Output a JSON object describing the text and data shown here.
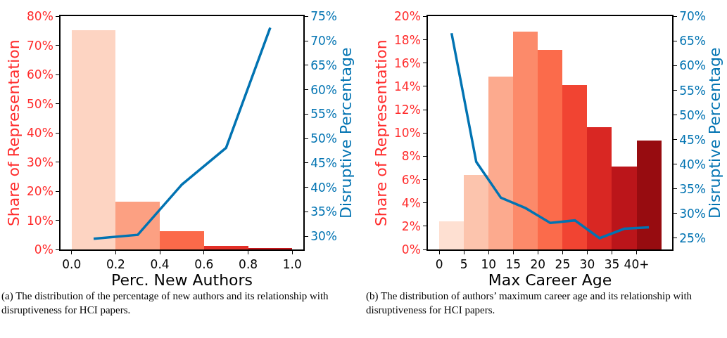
{
  "chart_data": [
    {
      "type": "histogram",
      "xlabel": "Perc. New Authors",
      "ylabel": "Share of Representation",
      "y2label": "Disruptive Percentage",
      "bins": [
        0.0,
        0.2,
        0.4,
        0.6,
        0.8,
        1.0
      ],
      "values": [
        75.1,
        16.4,
        6.3,
        1.1,
        0.5
      ],
      "colors": [
        "#fdd4c2",
        "#fca082",
        "#fb6a4a",
        "#e32f27",
        "#c3161b"
      ],
      "series": [
        {
          "type": "line",
          "axis": "y2",
          "color": "#0173b2",
          "x": [
            0.1,
            0.3,
            0.5,
            0.7,
            0.9
          ],
          "values": [
            29.5,
            30.3,
            40.6,
            48.1,
            72.7
          ]
        }
      ],
      "xlim": [
        -0.05,
        1.05
      ],
      "xticks": [
        {
          "value": 0,
          "label": "0.0"
        },
        {
          "value": 0.2,
          "label": "0.2"
        },
        {
          "value": 0.4,
          "label": "0.4"
        },
        {
          "value": 0.6,
          "label": "0.6"
        },
        {
          "value": 0.8,
          "label": "0.8"
        },
        {
          "value": 1,
          "label": "1.0"
        }
      ],
      "ylim": [
        0,
        80
      ],
      "yticks": [
        {
          "value": 0,
          "label": "0%"
        },
        {
          "value": 10,
          "label": "10%"
        },
        {
          "value": 20,
          "label": "20%"
        },
        {
          "value": 30,
          "label": "30%"
        },
        {
          "value": 40,
          "label": "40%"
        },
        {
          "value": 50,
          "label": "50%"
        },
        {
          "value": 60,
          "label": "60%"
        },
        {
          "value": 70,
          "label": "70%"
        },
        {
          "value": 80,
          "label": "80%"
        }
      ],
      "y2lim": [
        27.3,
        75
      ],
      "y2ticks": [
        {
          "value": 30,
          "label": "30%"
        },
        {
          "value": 35,
          "label": "35%"
        },
        {
          "value": 40,
          "label": "40%"
        },
        {
          "value": 45,
          "label": "45%"
        },
        {
          "value": 50,
          "label": "50%"
        },
        {
          "value": 55,
          "label": "55%"
        },
        {
          "value": 60,
          "label": "60%"
        },
        {
          "value": 65,
          "label": "65%"
        },
        {
          "value": 70,
          "label": "70%"
        },
        {
          "value": 75,
          "label": "75%"
        }
      ],
      "annotations": [
        "(a) The distribution of the percentage of new authors and its relationship with disruptiveness for HCI papers."
      ]
    },
    {
      "type": "histogram",
      "xlabel": "Max Career Age",
      "ylabel": "Share of Representation",
      "y2label": "Disruptive Percentage",
      "bins": [
        0,
        5,
        10,
        15,
        20,
        25,
        30,
        35,
        40,
        45
      ],
      "values": [
        2.37,
        6.36,
        14.8,
        18.7,
        17.1,
        14.06,
        10.47,
        7.12,
        9.32
      ],
      "colors": [
        "#fee0d2",
        "#fcc4ad",
        "#fcaa8e",
        "#fc8a6a",
        "#fb6b4b",
        "#f14432",
        "#d92723",
        "#bb151a",
        "#970c10"
      ],
      "series": [
        {
          "type": "line",
          "axis": "y2",
          "color": "#0173b2",
          "x": [
            2.5,
            7.5,
            12.5,
            17.5,
            22.5,
            27.5,
            32.5,
            37.5,
            42.5
          ],
          "values": [
            66.6,
            40.5,
            33.2,
            31.1,
            28.1,
            28.6,
            25.0,
            26.9,
            27.2
          ]
        }
      ],
      "xlim": [
        -2.3,
        47.2
      ],
      "xticks": [
        0,
        5,
        10,
        15,
        20,
        25,
        30,
        35,
        {
          "value": 40,
          "label": "40+"
        }
      ],
      "ylim": [
        0,
        20
      ],
      "yticks": [
        {
          "value": 0,
          "label": "0%"
        },
        {
          "value": 2,
          "label": "2%"
        },
        {
          "value": 4,
          "label": "4%"
        },
        {
          "value": 6,
          "label": "6%"
        },
        {
          "value": 8,
          "label": "8%"
        },
        {
          "value": 10,
          "label": "10%"
        },
        {
          "value": 12,
          "label": "12%"
        },
        {
          "value": 14,
          "label": "14%"
        },
        {
          "value": 16,
          "label": "16%"
        },
        {
          "value": 18,
          "label": "18%"
        },
        {
          "value": 20,
          "label": "20%"
        }
      ],
      "y2lim": [
        22.7,
        70
      ],
      "y2ticks": [
        {
          "value": 25,
          "label": "25%"
        },
        {
          "value": 30,
          "label": "30%"
        },
        {
          "value": 35,
          "label": "35%"
        },
        {
          "value": 40,
          "label": "40%"
        },
        {
          "value": 45,
          "label": "45%"
        },
        {
          "value": 50,
          "label": "50%"
        },
        {
          "value": 55,
          "label": "55%"
        },
        {
          "value": 60,
          "label": "60%"
        },
        {
          "value": 65,
          "label": "65%"
        },
        {
          "value": 70,
          "label": "70%"
        }
      ],
      "annotations": [
        "(b) The distribution of authors’ maximum career age and its relationship with disruptiveness for HCI papers."
      ]
    }
  ]
}
